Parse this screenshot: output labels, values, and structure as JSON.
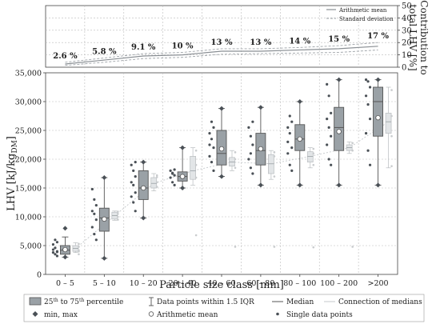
{
  "colors": {
    "box_main": "#9aa1a6",
    "box_light": "#e2e5e7",
    "stroke": "#555555",
    "marker": "#4a5056",
    "median_line": "#a8adb2",
    "top_mean": "#8a8f94",
    "top_std": "#9ea3a8",
    "grid": "#bbbbbb",
    "axis": "#444444"
  },
  "chart_data": [
    {
      "type": "line",
      "name": "contribution-panel",
      "ylabel": "Contribution to total LHV [%]",
      "ylim": [
        0,
        50
      ],
      "yticks": [
        0,
        10,
        20,
        30,
        40,
        50
      ],
      "legend": {
        "position": "top-right",
        "entries": [
          "Arithmetic mean",
          "Standard deviation"
        ]
      },
      "categories": [
        "0 – 5",
        "5 – 10",
        "10 – 20",
        "20 – 40",
        "40 – 60",
        "60 – 80",
        "80 – 100",
        "100 – 200",
        ">200"
      ],
      "percent_labels": [
        "2.6 %",
        "5.8 %",
        "9.1 %",
        "10 %",
        "13 %",
        "13 %",
        "14 %",
        "15 %",
        "17 %"
      ],
      "series": [
        {
          "name": "Arithmetic mean",
          "values": [
            2.6,
            5.8,
            9.1,
            10,
            13,
            13,
            14,
            15,
            17
          ]
        },
        {
          "name": "Standard deviation upper",
          "values": [
            4,
            7.5,
            11,
            12,
            15,
            15,
            16,
            17.5,
            20
          ]
        },
        {
          "name": "Standard deviation lower",
          "values": [
            1.5,
            4,
            7,
            8,
            10.5,
            11,
            11.5,
            12,
            14
          ]
        }
      ]
    },
    {
      "type": "boxplot",
      "name": "lhv-panel",
      "xlabel": "Particle size class [mm]",
      "ylabel": "LHV [kJ/kg",
      "ylabel_sub": "DM",
      "ylabel_end": "]",
      "ylim": [
        0,
        35000
      ],
      "yticks": [
        0,
        5000,
        10000,
        15000,
        20000,
        25000,
        30000,
        35000
      ],
      "ytick_labels": [
        "0",
        "5,000",
        "10,000",
        "15,000",
        "20,000",
        "25,000",
        "30,000",
        "35,000"
      ],
      "categories": [
        "0 – 5",
        "5 – 10",
        "10 – 20",
        "20 – 40",
        "40 – 60",
        "60 – 80",
        "80 – 100",
        "100 – 200",
        ">200"
      ],
      "main_boxes": [
        {
          "q1": 3500,
          "median": 4200,
          "q3": 5000,
          "min": 3000,
          "max": 8000,
          "wlo": 3000,
          "whi": 6500,
          "mean": 4300,
          "points": [
            3200,
            3500,
            3800,
            4000,
            4600,
            5200,
            5600,
            6000,
            4300,
            3900
          ]
        },
        {
          "q1": 7500,
          "median": 9800,
          "q3": 11500,
          "min": 2800,
          "max": 16800,
          "wlo": 2800,
          "whi": 16800,
          "mean": 9600,
          "points": [
            6000,
            7000,
            8200,
            9500,
            10500,
            11000,
            12000,
            13000,
            14800
          ]
        },
        {
          "q1": 13000,
          "median": 15000,
          "q3": 18000,
          "min": 9800,
          "max": 19500,
          "wlo": 9800,
          "whi": 19500,
          "mean": 15000,
          "points": [
            11000,
            12500,
            13500,
            14200,
            15500,
            16000,
            17000,
            18000,
            19000,
            19500
          ]
        },
        {
          "q1": 16200,
          "median": 17000,
          "q3": 17800,
          "min": 15000,
          "max": 22000,
          "wlo": 15000,
          "whi": 22000,
          "mean": 17000,
          "points": [
            15500,
            16000,
            16800,
            17200,
            17600,
            18000,
            18200,
            17500
          ]
        },
        {
          "q1": 19000,
          "median": 21000,
          "q3": 25000,
          "min": 17000,
          "max": 28800,
          "wlo": 17000,
          "whi": 28800,
          "mean": 21800,
          "points": [
            18000,
            19500,
            20500,
            22000,
            23500,
            24500,
            25500,
            26500,
            22500
          ]
        },
        {
          "q1": 19000,
          "median": 21500,
          "q3": 24500,
          "min": 15500,
          "max": 29000,
          "wlo": 15500,
          "whi": 29000,
          "mean": 21800,
          "points": [
            17500,
            18500,
            20000,
            22500,
            24000,
            25500,
            26500,
            21000
          ]
        },
        {
          "q1": 21500,
          "median": 23500,
          "q3": 26000,
          "min": 15500,
          "max": 30000,
          "wlo": 15500,
          "whi": 30000,
          "mean": 23500,
          "points": [
            18000,
            19000,
            21000,
            22000,
            24500,
            25500,
            26500,
            27500,
            23000
          ]
        },
        {
          "q1": 21500,
          "median": 25500,
          "q3": 29000,
          "min": 15500,
          "max": 33800,
          "wlo": 15500,
          "whi": 33800,
          "mean": 24800,
          "points": [
            19000,
            20000,
            22500,
            24000,
            25500,
            27000,
            28000,
            31000,
            33000
          ]
        },
        {
          "q1": 24000,
          "median": 30000,
          "q3": 32500,
          "min": 15500,
          "max": 33800,
          "wlo": 15500,
          "whi": 33800,
          "mean": 27200,
          "points": [
            19000,
            21500,
            24500,
            27000,
            29500,
            31000,
            32500,
            33500,
            33800
          ]
        }
      ],
      "light_boxes": [
        {
          "q1": 4000,
          "median": 4500,
          "q3": 5000,
          "wlo": 3800,
          "whi": 5500,
          "mean": 4600,
          "points": [
            3500,
            4200,
            4800,
            5300,
            4000
          ]
        },
        {
          "q1": 9600,
          "median": 10200,
          "q3": 10800,
          "wlo": 9400,
          "whi": 11000,
          "mean": 10100,
          "points": [
            9500,
            10000,
            10500,
            10900
          ]
        },
        {
          "q1": 15000,
          "median": 15800,
          "q3": 16800,
          "wlo": 14500,
          "whi": 17500,
          "mean": 16000,
          "points": [
            15200,
            16000,
            16900,
            17200
          ]
        },
        {
          "q1": 16500,
          "median": 18000,
          "q3": 20500,
          "wlo": 15500,
          "whi": 22000,
          "mean": 18000,
          "points": [
            6800,
            16800,
            19000,
            21500
          ]
        },
        {
          "q1": 18800,
          "median": 19500,
          "q3": 20300,
          "wlo": 18000,
          "whi": 21500,
          "mean": 19500,
          "points": [
            4800,
            18500,
            20000,
            21200
          ]
        },
        {
          "q1": 17500,
          "median": 19200,
          "q3": 20800,
          "wlo": 16500,
          "whi": 21500,
          "mean": 19000,
          "points": [
            4800,
            17000,
            20500,
            21200
          ]
        },
        {
          "q1": 19500,
          "median": 20500,
          "q3": 21300,
          "wlo": 18500,
          "whi": 22000,
          "mean": 20300,
          "points": [
            4700,
            19000,
            21000,
            21800
          ]
        },
        {
          "q1": 21500,
          "median": 22000,
          "q3": 22500,
          "wlo": 21000,
          "whi": 23000,
          "mean": 22000,
          "points": [
            4800,
            21500,
            22800
          ]
        },
        {
          "q1": 24500,
          "median": 26500,
          "q3": 28000,
          "wlo": 18500,
          "whi": 32500,
          "mean": 26200,
          "points": [
            18800,
            24000,
            27500,
            32000
          ]
        }
      ],
      "legend": {
        "position": "bottom",
        "entries": [
          {
            "label": "25th to 75th percentile",
            "symbol": "box",
            "label_prefix": "25",
            "sup1": "th",
            "mid": " to 75",
            "sup2": "th",
            "label_suffix": " percentile"
          },
          {
            "label": "Data points within 1.5 IQR",
            "symbol": "whisker"
          },
          {
            "label": "Median",
            "symbol": "line"
          },
          {
            "label": "Connection of medians",
            "symbol": "lightline"
          },
          {
            "label": "min, max",
            "symbol": "diamond"
          },
          {
            "label": "Arithmetic mean",
            "symbol": "circle"
          },
          {
            "label": "Single data points",
            "symbol": "dot"
          }
        ]
      }
    }
  ]
}
